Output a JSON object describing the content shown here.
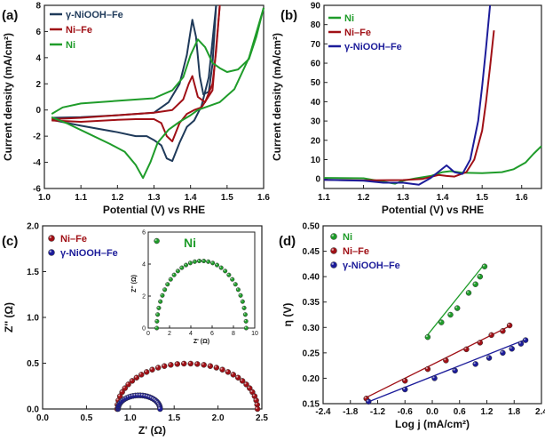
{
  "colors": {
    "green": "#1f9c2a",
    "red": "#a01016",
    "navy": "#1f3a5a",
    "blue": "#1c1c9a"
  },
  "chart_data": [
    {
      "id": "a",
      "label": "(a)",
      "type": "line",
      "xlabel": "Potential (V) vs RHE",
      "ylabel": "Current density (mA/cm²)",
      "xlim": [
        1.0,
        1.6
      ],
      "ylim": [
        -6,
        8
      ],
      "xticks": [
        "1.0",
        "1.1",
        "1.2",
        "1.3",
        "1.4",
        "1.5",
        "1.6"
      ],
      "yticks": [
        "-6",
        "-4",
        "-2",
        "0",
        "2",
        "4",
        "6",
        "8"
      ],
      "legend": [
        "γ-NiOOH–Fe",
        "Ni–Fe",
        "Ni"
      ],
      "series": [
        {
          "name": "γ-NiOOH–Fe",
          "color": "navy",
          "forward": [
            [
              1.02,
              -0.6
            ],
            [
              1.1,
              -0.55
            ],
            [
              1.2,
              -0.4
            ],
            [
              1.3,
              -0.2
            ],
            [
              1.34,
              0.6
            ],
            [
              1.37,
              2.0
            ],
            [
              1.39,
              4.2
            ],
            [
              1.405,
              6.9
            ],
            [
              1.415,
              5.6
            ],
            [
              1.425,
              2.6
            ],
            [
              1.435,
              1.2
            ],
            [
              1.45,
              1.4
            ],
            [
              1.46,
              3.5
            ],
            [
              1.47,
              8.0
            ]
          ],
          "reverse": [
            [
              1.47,
              8.0
            ],
            [
              1.45,
              2.5
            ],
            [
              1.43,
              0.3
            ],
            [
              1.41,
              -0.8
            ],
            [
              1.39,
              -1.3
            ],
            [
              1.37,
              -2.5
            ],
            [
              1.35,
              -3.9
            ],
            [
              1.335,
              -3.7
            ],
            [
              1.32,
              -2.7
            ],
            [
              1.3,
              -2.3
            ],
            [
              1.28,
              -2.0
            ],
            [
              1.25,
              -2.0
            ],
            [
              1.2,
              -1.7
            ],
            [
              1.1,
              -1.2
            ],
            [
              1.02,
              -0.75
            ]
          ]
        },
        {
          "name": "Ni–Fe",
          "color": "red",
          "forward": [
            [
              1.02,
              -0.7
            ],
            [
              1.1,
              -0.6
            ],
            [
              1.2,
              -0.4
            ],
            [
              1.3,
              -0.2
            ],
            [
              1.35,
              0.0
            ],
            [
              1.38,
              0.8
            ],
            [
              1.395,
              2.0
            ],
            [
              1.405,
              2.6
            ],
            [
              1.42,
              1.0
            ],
            [
              1.44,
              0.6
            ],
            [
              1.46,
              2.0
            ],
            [
              1.47,
              4.5
            ],
            [
              1.48,
              8.0
            ]
          ],
          "reverse": [
            [
              1.48,
              8.0
            ],
            [
              1.46,
              1.5
            ],
            [
              1.43,
              0.2
            ],
            [
              1.41,
              0.0
            ],
            [
              1.39,
              -0.3
            ],
            [
              1.37,
              -1.0
            ],
            [
              1.35,
              -2.4
            ],
            [
              1.335,
              -2.0
            ],
            [
              1.32,
              -1.0
            ],
            [
              1.3,
              -0.7
            ],
            [
              1.25,
              -0.7
            ],
            [
              1.2,
              -0.75
            ],
            [
              1.1,
              -0.9
            ],
            [
              1.02,
              -0.8
            ]
          ]
        },
        {
          "name": "Ni",
          "color": "green",
          "forward": [
            [
              1.02,
              -0.3
            ],
            [
              1.05,
              0.2
            ],
            [
              1.1,
              0.5
            ],
            [
              1.2,
              0.7
            ],
            [
              1.3,
              0.9
            ],
            [
              1.35,
              1.5
            ],
            [
              1.38,
              2.5
            ],
            [
              1.4,
              4.2
            ],
            [
              1.42,
              5.4
            ],
            [
              1.44,
              4.8
            ],
            [
              1.46,
              3.6
            ],
            [
              1.48,
              3.2
            ],
            [
              1.5,
              2.9
            ],
            [
              1.53,
              3.1
            ],
            [
              1.56,
              3.9
            ],
            [
              1.58,
              5.6
            ],
            [
              1.6,
              7.8
            ]
          ],
          "reverse": [
            [
              1.6,
              7.8
            ],
            [
              1.56,
              4.0
            ],
            [
              1.52,
              1.6
            ],
            [
              1.48,
              0.6
            ],
            [
              1.45,
              0.3
            ],
            [
              1.42,
              0.0
            ],
            [
              1.4,
              -0.4
            ],
            [
              1.37,
              -0.9
            ],
            [
              1.34,
              -1.5
            ],
            [
              1.31,
              -2.5
            ],
            [
              1.29,
              -4.0
            ],
            [
              1.27,
              -5.2
            ],
            [
              1.25,
              -4.2
            ],
            [
              1.22,
              -3.2
            ],
            [
              1.18,
              -2.6
            ],
            [
              1.12,
              -1.8
            ],
            [
              1.06,
              -1.0
            ],
            [
              1.02,
              -0.55
            ]
          ]
        }
      ]
    },
    {
      "id": "b",
      "label": "(b)",
      "type": "line",
      "xlabel": "Potential (V) vs RHE",
      "ylabel": "Current density (mA/cm²)",
      "xlim": [
        1.1,
        1.65
      ],
      "ylim": [
        -5,
        90
      ],
      "xticks": [
        "1.1",
        "1.2",
        "1.3",
        "1.4",
        "1.5",
        "1.6"
      ],
      "yticks": [
        "0",
        "10",
        "20",
        "30",
        "40",
        "50",
        "60",
        "70",
        "80",
        "90"
      ],
      "legend": [
        "Ni",
        "Ni–Fe",
        "γ-NiOOH–Fe"
      ],
      "series": [
        {
          "name": "Ni",
          "color": "green",
          "points": [
            [
              1.1,
              0.5
            ],
            [
              1.2,
              0.3
            ],
            [
              1.25,
              -1.5
            ],
            [
              1.28,
              -2.5
            ],
            [
              1.3,
              -1.0
            ],
            [
              1.33,
              0.2
            ],
            [
              1.37,
              1.5
            ],
            [
              1.4,
              3.5
            ],
            [
              1.42,
              4.0
            ],
            [
              1.45,
              3.2
            ],
            [
              1.5,
              3.0
            ],
            [
              1.55,
              3.5
            ],
            [
              1.58,
              5.0
            ],
            [
              1.61,
              8.5
            ],
            [
              1.63,
              13.0
            ],
            [
              1.65,
              17.0
            ]
          ]
        },
        {
          "name": "Ni–Fe",
          "color": "red",
          "points": [
            [
              1.1,
              -0.5
            ],
            [
              1.2,
              -0.8
            ],
            [
              1.3,
              -0.6
            ],
            [
              1.35,
              0.0
            ],
            [
              1.39,
              2.0
            ],
            [
              1.41,
              1.5
            ],
            [
              1.43,
              1.2
            ],
            [
              1.46,
              3.5
            ],
            [
              1.48,
              10.0
            ],
            [
              1.5,
              25.0
            ],
            [
              1.51,
              40.0
            ],
            [
              1.52,
              58.0
            ],
            [
              1.53,
              77.0
            ]
          ]
        },
        {
          "name": "γ-NiOOH–Fe",
          "color": "blue",
          "points": [
            [
              1.1,
              -0.5
            ],
            [
              1.2,
              -1.0
            ],
            [
              1.25,
              -2.0
            ],
            [
              1.3,
              -2.0
            ],
            [
              1.34,
              -3.0
            ],
            [
              1.37,
              0.5
            ],
            [
              1.41,
              7.0
            ],
            [
              1.43,
              3.5
            ],
            [
              1.45,
              2.5
            ],
            [
              1.47,
              10.0
            ],
            [
              1.49,
              30.0
            ],
            [
              1.5,
              48.0
            ],
            [
              1.51,
              68.0
            ],
            [
              1.52,
              90.0
            ]
          ]
        }
      ]
    },
    {
      "id": "c",
      "label": "(c)",
      "type": "scatter",
      "xlabel": "Z' (Ω)",
      "ylabel": "Z'' (Ω)",
      "xlim": [
        0.0,
        2.5
      ],
      "ylim": [
        0.0,
        2.0
      ],
      "xticks": [
        "0.0",
        "0.5",
        "1.0",
        "1.5",
        "2.0",
        "2.5"
      ],
      "yticks": [
        "0.0",
        "0.5",
        "1.0",
        "1.5",
        "2.0"
      ],
      "legend": [
        "Ni–Fe",
        "γ-NiOOH–Fe"
      ],
      "series": [
        {
          "name": "Ni–Fe",
          "color": "red",
          "center": 1.65,
          "radius": 0.8,
          "count": 34
        },
        {
          "name": "γ-NiOOH–Fe",
          "color": "blue",
          "center": 1.1,
          "radius": 0.24,
          "count": 28
        }
      ],
      "inset": {
        "legend": "Ni",
        "xlabel": "Z' (Ω)",
        "ylabel": "Z'' (Ω)",
        "xlim": [
          0,
          10
        ],
        "ylim": [
          0,
          6
        ],
        "xticks": [
          "0",
          "2",
          "4",
          "6",
          "8",
          "10"
        ],
        "yticks": [
          "0",
          "2",
          "4",
          "6"
        ],
        "series": {
          "name": "Ni",
          "color": "green",
          "center": 5.0,
          "radius": 4.2,
          "count": 32
        }
      }
    },
    {
      "id": "d",
      "label": "(d)",
      "type": "scatter",
      "xlabel": "Log j (mA/cm²)",
      "ylabel": "η (V)",
      "xlim": [
        -2.4,
        2.4
      ],
      "ylim": [
        0.15,
        0.5
      ],
      "xticks": [
        "-2.4",
        "-1.8",
        "-1.2",
        "-0.6",
        "0.0",
        "0.6",
        "1.2",
        "1.8",
        "2.4"
      ],
      "yticks": [
        "0.15",
        "0.20",
        "0.25",
        "0.30",
        "0.35",
        "0.40",
        "0.45",
        "0.50"
      ],
      "legend": [
        "Ni",
        "Ni–Fe",
        "γ-NiOOH–Fe"
      ],
      "series": [
        {
          "name": "Ni",
          "color": "green",
          "fit": [
            [
              -0.15,
              0.28
            ],
            [
              1.15,
              0.425
            ]
          ],
          "points": [
            [
              -0.1,
              0.281
            ],
            [
              0.2,
              0.31
            ],
            [
              0.4,
              0.325
            ],
            [
              0.55,
              0.338
            ],
            [
              0.8,
              0.368
            ],
            [
              0.95,
              0.385
            ],
            [
              1.05,
              0.4
            ],
            [
              1.15,
              0.42
            ]
          ]
        },
        {
          "name": "Ni–Fe",
          "color": "red",
          "fit": [
            [
              -1.5,
              0.16
            ],
            [
              1.75,
              0.305
            ]
          ],
          "points": [
            [
              -1.45,
              0.16
            ],
            [
              -0.6,
              0.195
            ],
            [
              -0.1,
              0.218
            ],
            [
              0.3,
              0.235
            ],
            [
              0.75,
              0.257
            ],
            [
              1.05,
              0.27
            ],
            [
              1.3,
              0.285
            ],
            [
              1.55,
              0.293
            ],
            [
              1.7,
              0.304
            ]
          ]
        },
        {
          "name": "γ-NiOOH–Fe",
          "color": "blue",
          "fit": [
            [
              -1.45,
              0.152
            ],
            [
              2.1,
              0.278
            ]
          ],
          "points": [
            [
              -1.4,
              0.154
            ],
            [
              -0.6,
              0.178
            ],
            [
              0.05,
              0.2
            ],
            [
              0.5,
              0.215
            ],
            [
              0.95,
              0.228
            ],
            [
              1.25,
              0.24
            ],
            [
              1.55,
              0.25
            ],
            [
              1.75,
              0.258
            ],
            [
              1.95,
              0.268
            ],
            [
              2.05,
              0.275
            ]
          ]
        }
      ]
    }
  ]
}
